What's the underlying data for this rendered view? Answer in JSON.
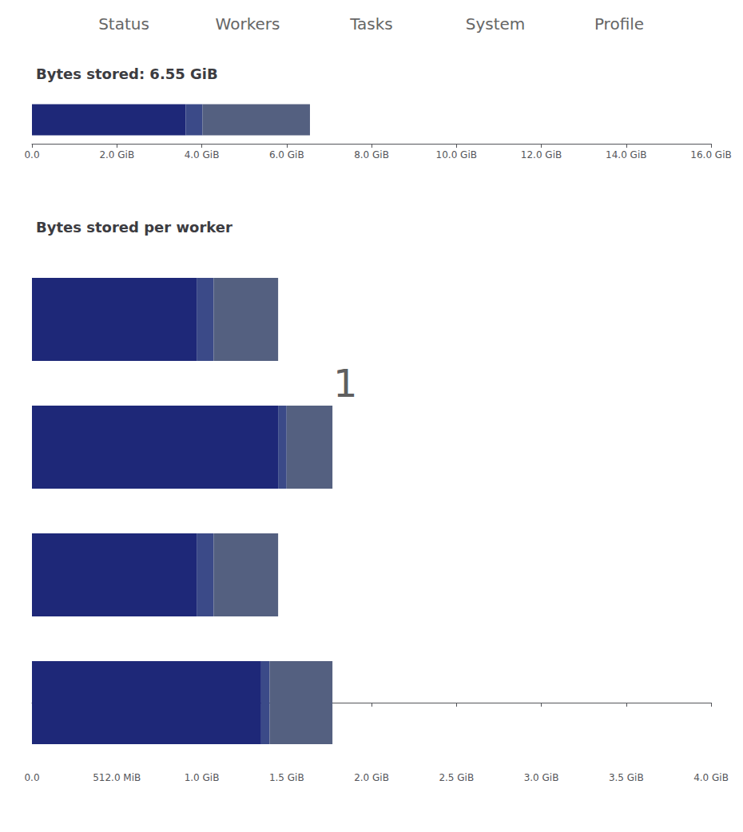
{
  "chart_data": [
    {
      "type": "bar",
      "title": "Bytes stored: 6.55 GiB",
      "orientation": "horizontal",
      "stacked": true,
      "grid": false,
      "tick_labels": "x",
      "categories": [
        null
      ],
      "series": [
        {
          "color": "#1e2878",
          "values": [
            3.62
          ]
        },
        {
          "color": "#3b4a88",
          "values": [
            0.4
          ]
        },
        {
          "color": "#546080",
          "values": [
            2.53
          ]
        }
      ],
      "xlim": [
        0,
        16
      ],
      "xticks": [
        {
          "value": 0,
          "label": "0.0"
        },
        {
          "value": 2,
          "label": "2.0 GiB"
        },
        {
          "value": 4,
          "label": "4.0 GiB"
        },
        {
          "value": 6,
          "label": "6.0 GiB"
        },
        {
          "value": 8,
          "label": "8.0 GiB"
        },
        {
          "value": 10,
          "label": "10.0 GiB"
        },
        {
          "value": 12,
          "label": "12.0 GiB"
        },
        {
          "value": 14,
          "label": "14.0 GiB"
        },
        {
          "value": 16,
          "label": "16.0 GiB"
        }
      ],
      "annotations": [
        {
          "text": "Status"
        },
        {
          "text": "Workers"
        },
        {
          "text": "Tasks"
        },
        {
          "text": "System"
        },
        {
          "text": "Profile"
        }
      ]
    },
    {
      "type": "bar",
      "title": "Bytes stored per worker",
      "orientation": "horizontal",
      "stacked": true,
      "grid": false,
      "tick_labels": "x",
      "categories": [
        null,
        null,
        null,
        null
      ],
      "series": [
        {
          "color": "#1e2878",
          "values": [
            0.97,
            1.45,
            0.97,
            1.35
          ]
        },
        {
          "color": "#3b4a88",
          "values": [
            0.1,
            0.05,
            0.1,
            0.05
          ]
        },
        {
          "color": "#546080",
          "values": [
            0.38,
            0.27,
            0.38,
            0.37
          ]
        }
      ],
      "xlim": [
        0,
        4.0
      ],
      "xticks": [
        {
          "value": 0,
          "label": "0.0"
        },
        {
          "value": 0.5,
          "label": "512.0 MiB"
        },
        {
          "value": 1.0,
          "label": "1.0 GiB"
        },
        {
          "value": 1.5,
          "label": "1.5 GiB"
        },
        {
          "value": 2.0,
          "label": "2.0 GiB"
        },
        {
          "value": 2.5,
          "label": "2.5 GiB"
        },
        {
          "value": 3.0,
          "label": "3.0 GiB"
        },
        {
          "value": 3.5,
          "label": "3.5 GiB"
        },
        {
          "value": 4.0,
          "label": "4.0 GiB"
        }
      ],
      "annotations": [
        {
          "text": "1",
          "x": 1.75,
          "y": 2.5
        }
      ]
    }
  ]
}
